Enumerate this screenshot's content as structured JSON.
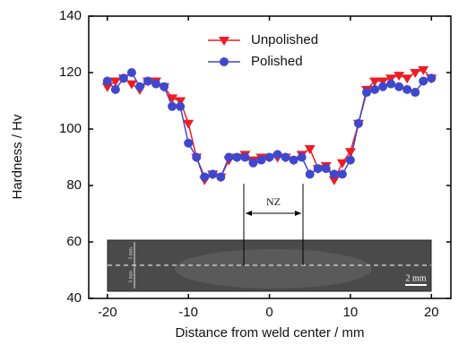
{
  "chart_data": {
    "type": "line",
    "xlabel": "Distance from weld center / mm",
    "ylabel": "Hardness / Hv",
    "x": [
      -20,
      -19,
      -18,
      -17,
      -16,
      -15,
      -14,
      -13,
      -12,
      -11,
      -10,
      -9,
      -8,
      -7,
      -6,
      -5,
      -4,
      -3,
      -2,
      -1,
      0,
      1,
      2,
      3,
      4,
      5,
      6,
      7,
      8,
      9,
      10,
      11,
      12,
      13,
      14,
      15,
      16,
      17,
      18,
      19,
      20
    ],
    "series": [
      {
        "name": "Unpolished",
        "color": "#ee1c25",
        "marker": "triangle-down",
        "values": [
          115,
          117,
          118,
          116,
          114,
          117,
          117,
          115,
          111,
          110,
          102,
          90,
          82,
          84,
          83,
          89,
          90,
          91,
          89,
          90,
          90,
          90,
          90,
          89,
          91,
          93,
          86,
          87,
          82,
          88,
          92,
          102,
          114,
          117,
          117,
          118,
          119,
          118,
          120,
          121,
          118
        ]
      },
      {
        "name": "Polished",
        "color": "#3f48cc",
        "marker": "circle",
        "values": [
          117,
          114,
          118,
          120,
          115,
          117,
          116,
          115,
          108,
          108,
          95,
          90,
          83,
          84,
          83,
          90,
          90,
          90,
          88,
          89,
          90,
          91,
          90,
          89,
          90,
          84,
          86,
          86,
          84,
          84,
          89,
          102,
          113,
          114,
          115,
          116,
          115,
          114,
          113,
          117,
          118
        ]
      }
    ],
    "xlim": [
      -22.3,
      22.4
    ],
    "ylim": [
      40,
      140
    ],
    "xticks": [
      -20,
      -10,
      0,
      10,
      20
    ],
    "yticks": [
      40,
      60,
      80,
      100,
      120,
      140
    ],
    "legend": "top",
    "annotations": [
      "NZ",
      "3 mm",
      "3 mm",
      "2 mm"
    ]
  }
}
